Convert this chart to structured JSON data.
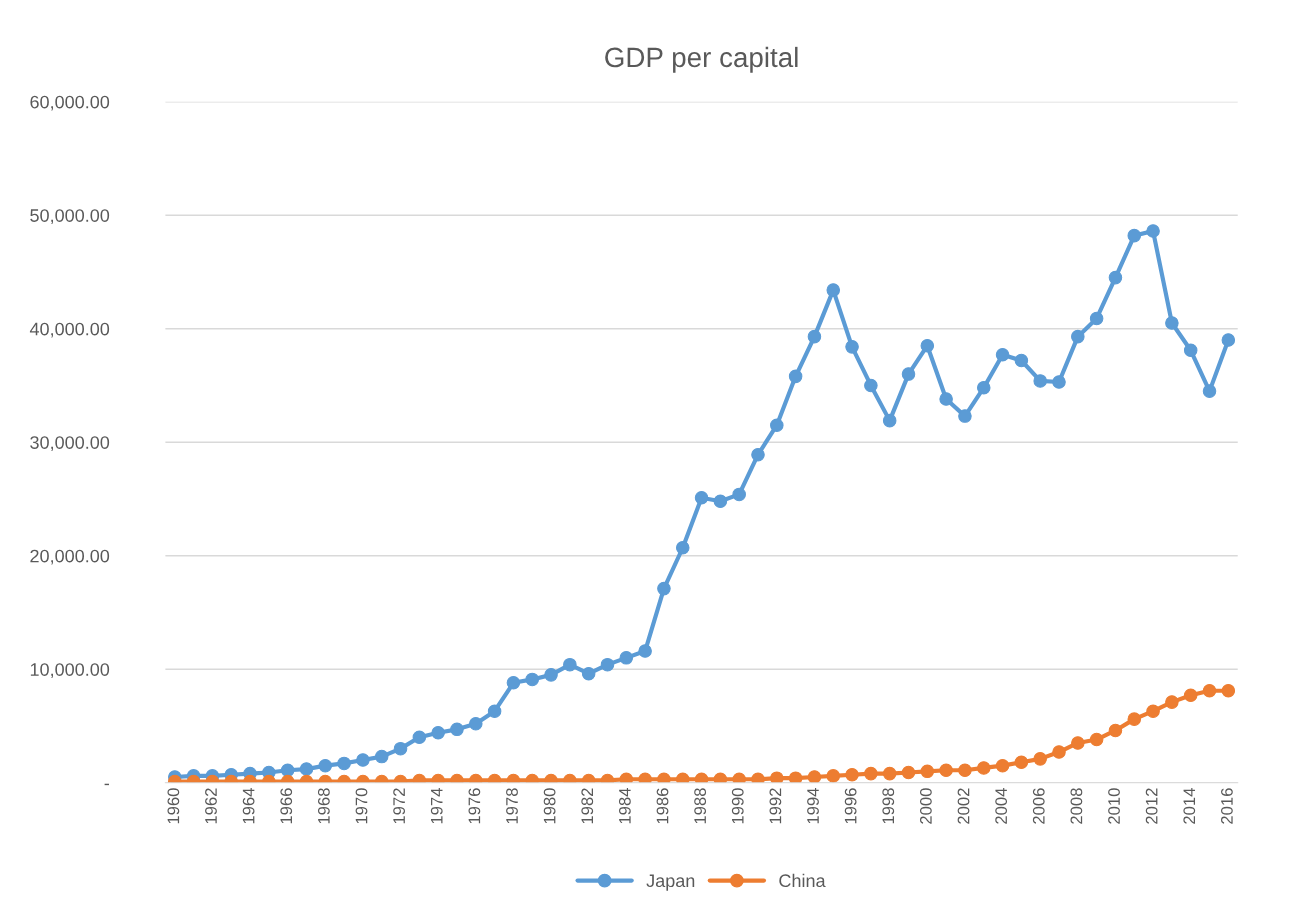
{
  "chart_data": {
    "type": "line",
    "title": "GDP per capital",
    "categories": [
      "1960",
      null,
      "1962",
      null,
      "1964",
      null,
      "1966",
      null,
      "1968",
      null,
      "1970",
      null,
      "1972",
      null,
      "1974",
      null,
      "1976",
      null,
      "1978",
      null,
      "1980",
      null,
      "1982",
      null,
      "1984",
      null,
      "1986",
      null,
      "1988",
      null,
      "1990",
      null,
      "1992",
      null,
      "1994",
      null,
      "1996",
      null,
      "1998",
      null,
      "2000",
      null,
      "2002",
      null,
      "2004",
      null,
      "2006",
      null,
      "2008",
      null,
      "2010",
      null,
      "2012",
      null,
      "2014",
      null,
      "2016"
    ],
    "series": [
      {
        "name": "Japan",
        "color": "#5b9bd5",
        "values": [
          500,
          600,
          600,
          700,
          800,
          900,
          1100,
          1200,
          1500,
          1700,
          2000,
          2300,
          3000,
          4000,
          4400,
          4700,
          5200,
          6300,
          8800,
          9100,
          9500,
          10400,
          9600,
          10400,
          11000,
          11600,
          17100,
          20700,
          25100,
          24800,
          25400,
          28900,
          31500,
          35800,
          39300,
          43400,
          38400,
          35000,
          31900,
          36000,
          38500,
          33800,
          32300,
          34800,
          37700,
          37200,
          35400,
          35300,
          39300,
          40900,
          44500,
          48200,
          48600,
          40500,
          38100,
          34500,
          39000
        ]
      },
      {
        "name": "China",
        "color": "#ed7d31",
        "values": [
          100,
          100,
          100,
          100,
          100,
          100,
          100,
          100,
          100,
          100,
          100,
          100,
          100,
          200,
          200,
          200,
          200,
          200,
          200,
          200,
          200,
          200,
          200,
          200,
          300,
          300,
          300,
          300,
          300,
          300,
          300,
          300,
          400,
          400,
          500,
          600,
          700,
          800,
          800,
          900,
          1000,
          1100,
          1100,
          1300,
          1500,
          1800,
          2100,
          2700,
          3500,
          3800,
          4600,
          5600,
          6300,
          7100,
          7700,
          8100,
          8100
        ]
      }
    ],
    "ylim": [
      0,
      60000
    ],
    "yticks": [
      {
        "value": 0,
        "label": "-"
      },
      {
        "value": 10000,
        "label": "10,000.00"
      },
      {
        "value": 20000,
        "label": "20,000.00"
      },
      {
        "value": 30000,
        "label": "30,000.00"
      },
      {
        "value": 40000,
        "label": "40,000.00"
      },
      {
        "value": 50000,
        "label": "50,000.00"
      },
      {
        "value": 60000,
        "label": "60,000.00"
      }
    ],
    "grid": "y",
    "legend": "bottom",
    "marker": "circle",
    "line_style": "solid"
  }
}
